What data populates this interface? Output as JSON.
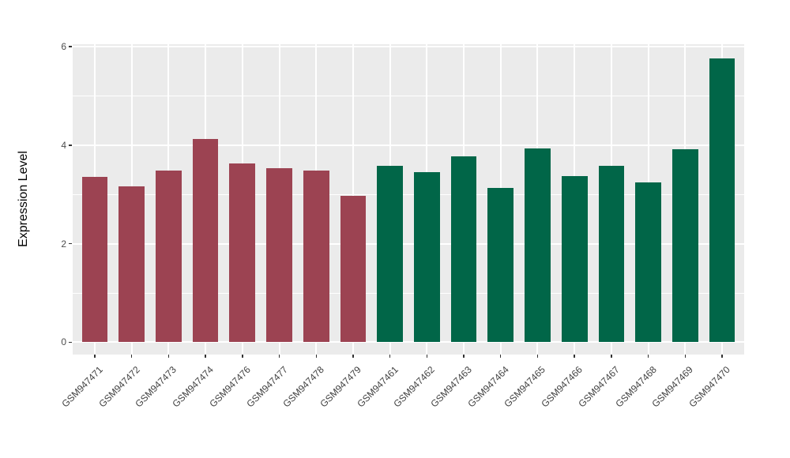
{
  "chart_data": {
    "type": "bar",
    "title": "",
    "xlabel": "",
    "ylabel": "Expression Level",
    "categories": [
      "GSM947471",
      "GSM947472",
      "GSM947473",
      "GSM947474",
      "GSM947476",
      "GSM947477",
      "GSM947478",
      "GSM947479",
      "GSM947461",
      "GSM947462",
      "GSM947463",
      "GSM947464",
      "GSM947465",
      "GSM947466",
      "GSM947467",
      "GSM947468",
      "GSM947469",
      "GSM947470"
    ],
    "values": [
      3.35,
      3.17,
      3.49,
      4.12,
      3.63,
      3.53,
      3.49,
      2.97,
      3.58,
      3.46,
      3.77,
      3.14,
      3.93,
      3.37,
      3.58,
      3.24,
      3.92,
      5.76
    ],
    "groups": [
      "red",
      "red",
      "red",
      "red",
      "red",
      "red",
      "red",
      "red",
      "green",
      "green",
      "green",
      "green",
      "green",
      "green",
      "green",
      "green",
      "green",
      "green"
    ],
    "group_colors": {
      "red": "#9C4352",
      "green": "#016648"
    },
    "ylim": [
      0,
      6
    ],
    "panel_range": [
      -0.25,
      6.05
    ],
    "yticks_major": [
      0,
      2,
      4,
      6
    ],
    "yticks_minor": [
      1,
      3,
      5
    ],
    "grid": true,
    "legend": "none",
    "bar_width_fraction": 0.7,
    "x_label_angle_deg": 45,
    "panel_background": "#EBEBEB",
    "grid_color": "#FFFFFF",
    "tick_color": "#333333",
    "axis_text_color": "#4D4D4D"
  }
}
